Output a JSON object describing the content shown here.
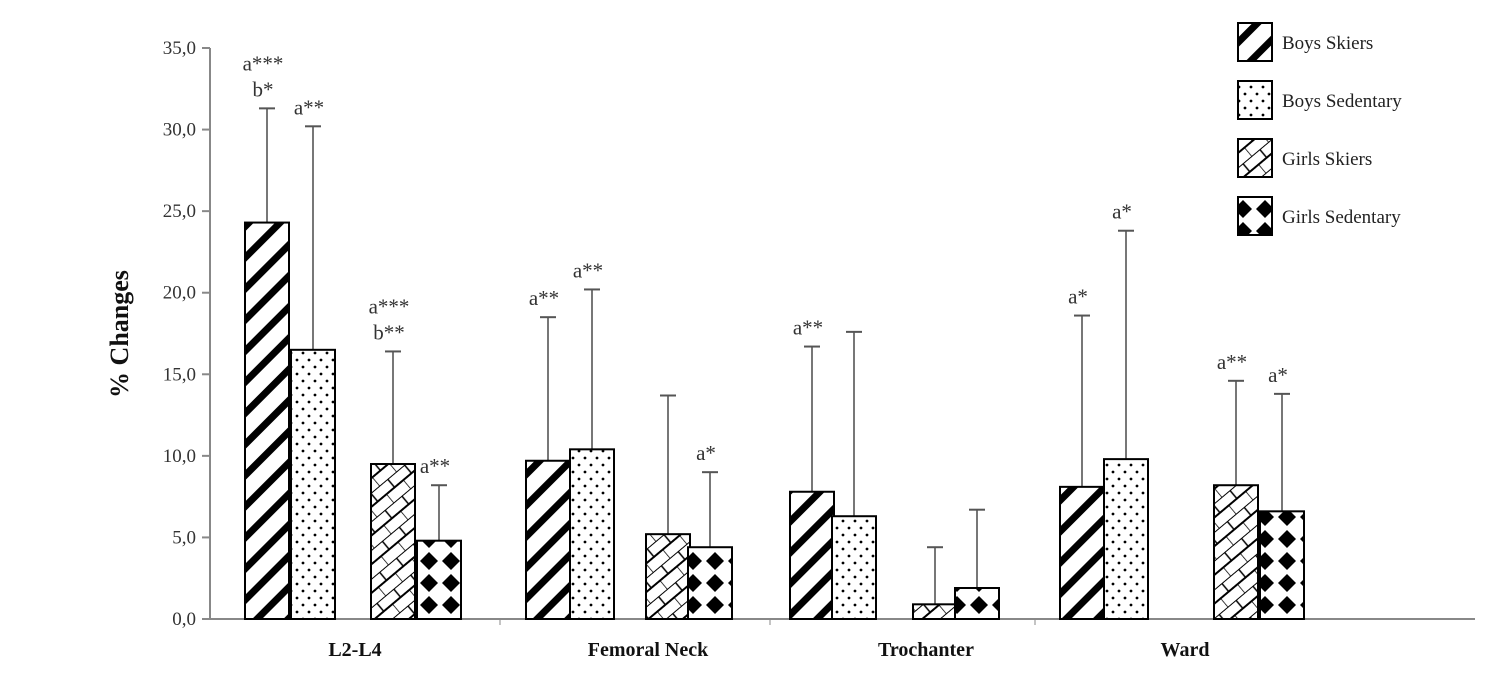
{
  "chart_data": {
    "type": "bar",
    "title": "",
    "xlabel": "",
    "ylabel": "% Changes",
    "ylim": [
      0,
      35
    ],
    "yticks": [
      "0,0",
      "5,0",
      "10,0",
      "15,0",
      "20,0",
      "25,0",
      "30,0",
      "35,0"
    ],
    "categories": [
      "L2-L4",
      "Femoral Neck",
      "Trochanter",
      "Ward"
    ],
    "legend_position": "top-right",
    "series": [
      {
        "name": "Boys Skiers",
        "pattern": "diagonal-stripes",
        "values": [
          24.3,
          9.7,
          7.8,
          8.1
        ],
        "error": [
          31.3,
          18.5,
          16.7,
          18.6
        ],
        "annotations": [
          [
            "a***",
            "b*"
          ],
          [
            "a**"
          ],
          [
            "a**"
          ],
          [
            "a*"
          ]
        ]
      },
      {
        "name": "Boys Sedentary",
        "pattern": "dots",
        "values": [
          16.5,
          10.4,
          6.3,
          9.8
        ],
        "error": [
          30.2,
          20.2,
          17.6,
          23.8
        ],
        "annotations": [
          [
            "a**"
          ],
          [
            "a**"
          ],
          [],
          [
            "a*"
          ]
        ]
      },
      {
        "name": "Girls Skiers",
        "pattern": "crosshatch",
        "values": [
          9.5,
          5.2,
          0.9,
          8.2
        ],
        "error": [
          16.4,
          13.7,
          4.4,
          14.6
        ],
        "annotations": [
          [
            "a***",
            "b**"
          ],
          [],
          [],
          [
            "a**"
          ]
        ]
      },
      {
        "name": "Girls Sedentary",
        "pattern": "diamonds",
        "values": [
          4.8,
          4.4,
          1.9,
          6.6
        ],
        "error": [
          8.2,
          9.0,
          6.7,
          13.8
        ],
        "annotations": [
          [
            "a**"
          ],
          [
            "a*"
          ],
          [],
          [
            "a*"
          ]
        ]
      }
    ]
  }
}
